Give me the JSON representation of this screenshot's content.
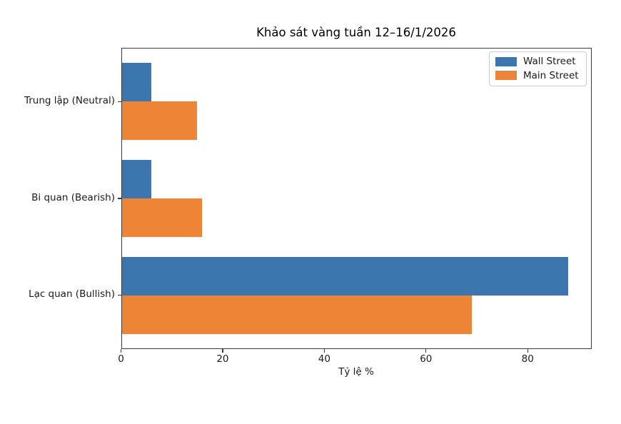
{
  "figure": {
    "background_color": "#ffffff",
    "spine_color": "#3a3a3a"
  },
  "chart_data": {
    "type": "bar",
    "orientation": "horizontal",
    "grouped": true,
    "title": "Khảo sát vàng tuần 12–16/1/2026",
    "xlabel": "Tỷ lệ %",
    "ylabel": "",
    "categories_top_to_bottom": [
      "Trung lập (Neutral)",
      "Bi quan (Bearish)",
      "Lạc quan (Bullish)"
    ],
    "series": [
      {
        "name": "Wall Street",
        "color": "#3b76af",
        "values_by_category": [
          6,
          6,
          88
        ]
      },
      {
        "name": "Main Street",
        "color": "#ee8536",
        "values_by_category": [
          15,
          16,
          69
        ]
      }
    ],
    "xticks": [
      0,
      20,
      40,
      60,
      80
    ],
    "xlim": [
      0,
      92.6
    ],
    "grid": false,
    "legend": {
      "position": "upper right",
      "entries": [
        "Wall Street",
        "Main Street"
      ]
    }
  }
}
